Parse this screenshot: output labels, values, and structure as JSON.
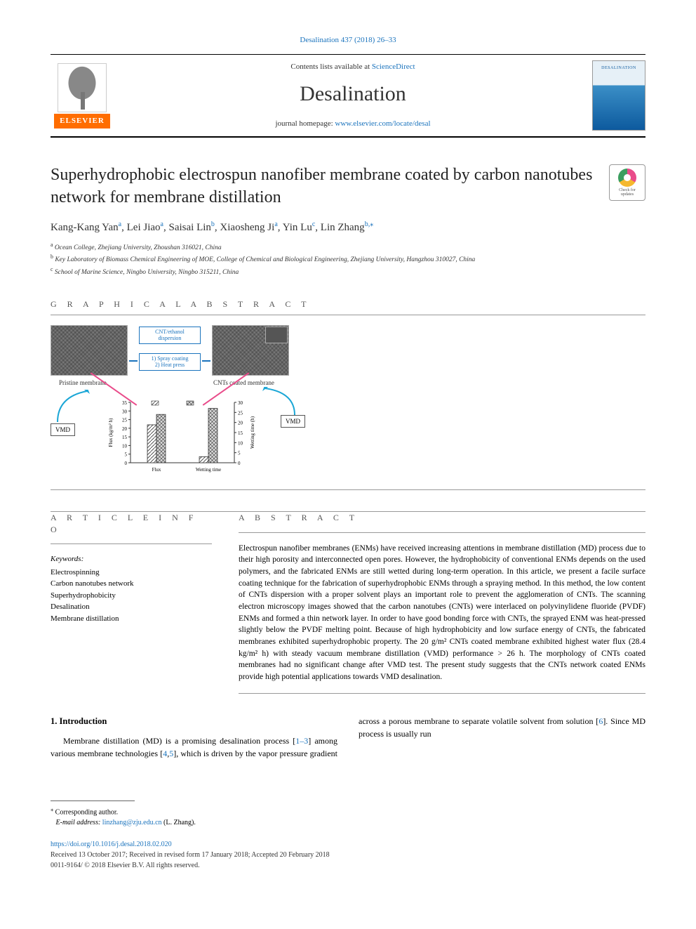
{
  "header": {
    "citation": "Desalination 437 (2018) 26–33",
    "contents_prefix": "Contents lists available at ",
    "contents_link": "ScienceDirect",
    "journal_name": "Desalination",
    "homepage_prefix": "journal homepage: ",
    "homepage_url": "www.elsevier.com/locate/desal",
    "cover_title": "DESALINATION",
    "elsevier": "ELSEVIER"
  },
  "check_updates": {
    "line1": "Check for",
    "line2": "updates"
  },
  "article": {
    "title": "Superhydrophobic electrospun nanofiber membrane coated by carbon nanotubes network for membrane distillation",
    "authors_html": [
      {
        "name": "Kang-Kang Yan",
        "aff": "a"
      },
      {
        "name": "Lei Jiao",
        "aff": "a"
      },
      {
        "name": "Saisai Lin",
        "aff": "b"
      },
      {
        "name": "Xiaosheng Ji",
        "aff": "a"
      },
      {
        "name": "Yin Lu",
        "aff": "c"
      },
      {
        "name": "Lin Zhang",
        "aff": "b,",
        "corr": "⁎"
      }
    ],
    "affiliations": [
      {
        "sup": "a",
        "text": "Ocean College, Zhejiang University, Zhoushan 316021, China"
      },
      {
        "sup": "b",
        "text": "Key Laboratory of Biomass Chemical Engineering of MOE, College of Chemical and Biological Engineering, Zhejiang University, Hangzhou 310027, China"
      },
      {
        "sup": "c",
        "text": "School of Marine Science, Ningbo University, Ningbo 315211, China"
      }
    ]
  },
  "sections": {
    "graphical_abstract": "G R A P H I C A L   A B S T R A C T",
    "article_info": "A R T I C L E   I N F O",
    "abstract": "A B S T R A C T"
  },
  "graphical_abstract": {
    "box_line1": "CNT/ethanol",
    "box_line2": "dispersion",
    "box_step1": "1) Spray coating",
    "box_step2": "2) Heat press",
    "left_label": "Pristine membrane",
    "right_label": "CNTs coated membrane",
    "vmd": "VMD",
    "chart": {
      "type": "grouped-bar",
      "categories": [
        "Flux",
        "Wetting time"
      ],
      "series": [
        {
          "label": "Pristine",
          "values": [
            22,
            3
          ],
          "fill": "#ffffff",
          "hatch": "diagonal"
        },
        {
          "label": "CNTs coated",
          "values": [
            28,
            27
          ],
          "fill": "#d9d9d9",
          "hatch": "cross"
        }
      ],
      "y_left_label": "Flux (kg/m² h)",
      "y_left_ticks": [
        0,
        5,
        10,
        15,
        20,
        25,
        30,
        35
      ],
      "y_right_label": "Wetting time (h)",
      "y_right_ticks": [
        0,
        5,
        10,
        15,
        20,
        25,
        30
      ],
      "colors": {
        "axis": "#333333",
        "grid": "#e0e0e0"
      },
      "font_size_pt": 7,
      "bar_width": 0.35
    },
    "sem_insets": {
      "count": 2,
      "background": "#b5b5b5",
      "description": "fibrous SEM texture"
    },
    "arrow_colors": {
      "process": "#1a73bd",
      "mapping": "#e94b8a",
      "vmd": "#1aa6d6"
    }
  },
  "keywords": {
    "heading": "Keywords:",
    "items": [
      "Electrospinning",
      "Carbon nanotubes network",
      "Superhydrophobicity",
      "Desalination",
      "Membrane distillation"
    ]
  },
  "abstract_text": "Electrospun nanofiber membranes (ENMs) have received increasing attentions in membrane distillation (MD) process due to their high porosity and interconnected open pores. However, the hydrophobicity of conventional ENMs depends on the used polymers, and the fabricated ENMs are still wetted during long-term operation. In this article, we present a facile surface coating technique for the fabrication of superhydrophobic ENMs through a spraying method. In this method, the low content of CNTs dispersion with a proper solvent plays an important role to prevent the agglomeration of CNTs. The scanning electron microscopy images showed that the carbon nanotubes (CNTs) were interlaced on polyvinylidene fluoride (PVDF) ENMs and formed a thin network layer. In order to have good bonding force with CNTs, the sprayed ENM was heat-pressed slightly below the PVDF melting point. Because of high hydrophobicity and low surface energy of CNTs, the fabricated membranes exhibited superhydrophobic property. The 20 g/m² CNTs coated membrane exhibited highest water flux (28.4 kg/m² h) with steady vacuum membrane distillation (VMD) performance > 26 h. The morphology of CNTs coated membranes had no significant change after VMD test. The present study suggests that the CNTs network coated ENMs provide high potential applications towards VMD desalination.",
  "body": {
    "heading": "1. Introduction",
    "para_left": "Membrane distillation (MD) is a promising desalination process",
    "para_right_prefix": "[",
    "ref1": "1–3",
    "para_right_mid1": "] among various membrane technologies [",
    "ref2": "4",
    "comma": ",",
    "ref3": "5",
    "para_right_mid2": "], which is driven by the vapor pressure gradient across a porous membrane to separate volatile solvent from solution [",
    "ref4": "6",
    "para_right_end": "]. Since MD process is usually run"
  },
  "footer": {
    "corr_sym": "⁎",
    "corr_text": "Corresponding author.",
    "email_label": "E-mail address: ",
    "email": "linzhang@zju.edu.cn",
    "email_author": " (L. Zhang).",
    "doi": "https://doi.org/10.1016/j.desal.2018.02.020",
    "history": "Received 13 October 2017; Received in revised form 17 January 2018; Accepted 20 February 2018",
    "copyright": "0011-9164/ © 2018 Elsevier B.V. All rights reserved."
  },
  "colors": {
    "link": "#1a73bd",
    "elsevier_bg": "#ff6d00",
    "rule": "#999999",
    "text": "#000000"
  }
}
